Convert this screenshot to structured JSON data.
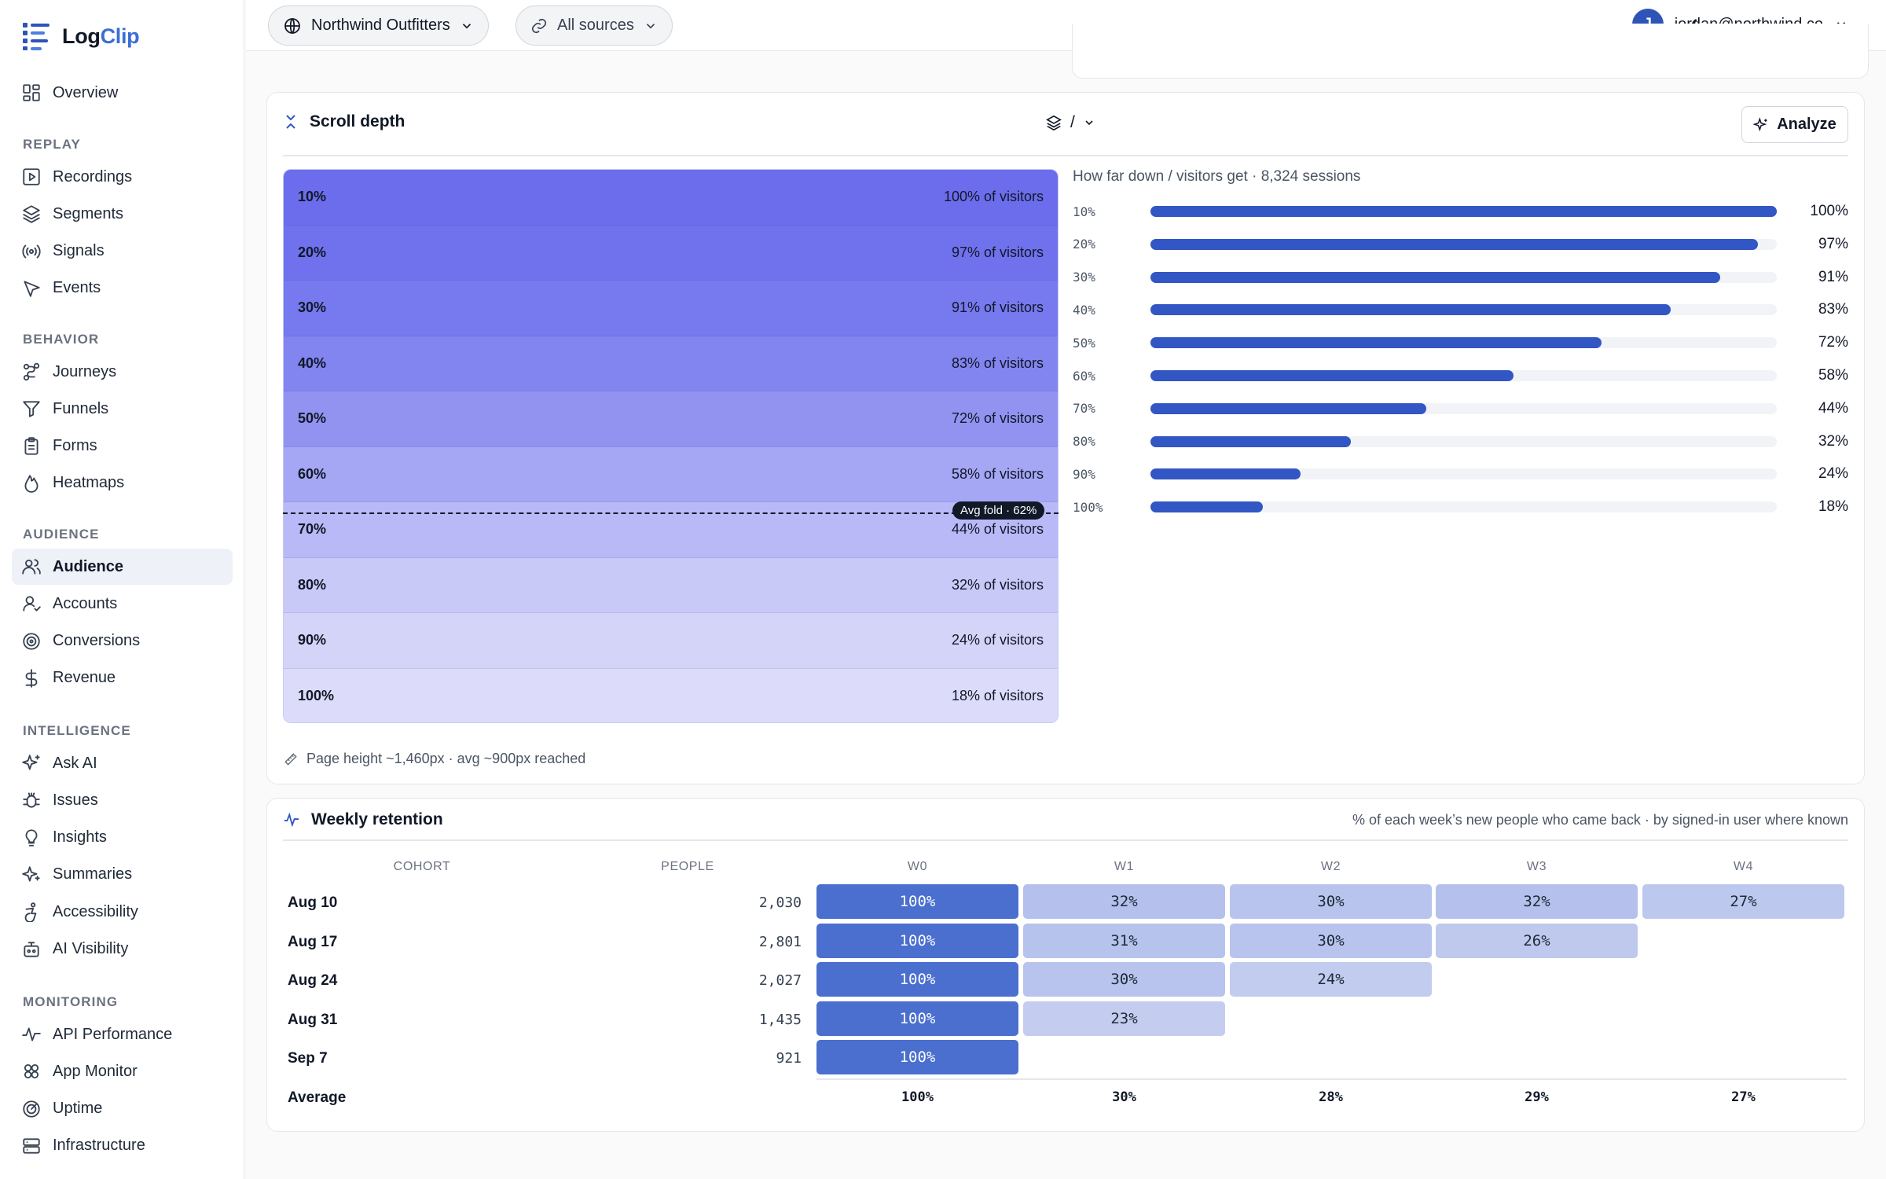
{
  "brand": {
    "prefix": "Log",
    "suffix": "Clip"
  },
  "nav": {
    "overview": "Overview",
    "sections": [
      {
        "title": "REPLAY",
        "items": [
          "Recordings",
          "Segments",
          "Signals",
          "Events"
        ]
      },
      {
        "title": "BEHAVIOR",
        "items": [
          "Journeys",
          "Funnels",
          "Forms",
          "Heatmaps"
        ]
      },
      {
        "title": "AUDIENCE",
        "items": [
          "Audience",
          "Accounts",
          "Conversions",
          "Revenue"
        ]
      },
      {
        "title": "INTELLIGENCE",
        "items": [
          "Ask AI",
          "Issues",
          "Insights",
          "Summaries",
          "Accessibility",
          "AI Visibility"
        ]
      },
      {
        "title": "MONITORING",
        "items": [
          "API Performance",
          "App Monitor",
          "Uptime",
          "Infrastructure"
        ]
      }
    ],
    "active": "Audience"
  },
  "topbar": {
    "workspace": "Northwind Outfitters",
    "sources": "All sources",
    "user_initial": "J",
    "user_email": "jordan@northwind.co"
  },
  "scroll": {
    "title": "Scroll depth",
    "page_selector": "/",
    "analyze_label": "Analyze",
    "subtitle": "How far down / visitors get · 8,324 sessions",
    "fold_label": "Avg fold · 62%",
    "fold_percent": 62,
    "footnote": "Page height ~1,460px · avg ~900px reached",
    "band_suffix": "of visitors",
    "depths": [
      {
        "label": "10%",
        "value": 100
      },
      {
        "label": "20%",
        "value": 97
      },
      {
        "label": "30%",
        "value": 91
      },
      {
        "label": "40%",
        "value": 83
      },
      {
        "label": "50%",
        "value": 72
      },
      {
        "label": "60%",
        "value": 58
      },
      {
        "label": "70%",
        "value": 44
      },
      {
        "label": "80%",
        "value": 32
      },
      {
        "label": "90%",
        "value": 24
      },
      {
        "label": "100%",
        "value": 18
      }
    ]
  },
  "retention": {
    "title": "Weekly retention",
    "note": "% of each week’s new people who came back · by signed-in user where known",
    "headers": {
      "cohort": "COHORT",
      "people": "PEOPLE",
      "weeks": [
        "W0",
        "W1",
        "W2",
        "W3",
        "W4"
      ]
    },
    "rows": [
      {
        "cohort": "Aug 10",
        "people": "2,030",
        "values": [
          100,
          32,
          30,
          32,
          27
        ]
      },
      {
        "cohort": "Aug 17",
        "people": "2,801",
        "values": [
          100,
          31,
          30,
          26
        ]
      },
      {
        "cohort": "Aug 24",
        "people": "2,027",
        "values": [
          100,
          30,
          24
        ]
      },
      {
        "cohort": "Aug 31",
        "people": "1,435",
        "values": [
          100,
          23
        ]
      },
      {
        "cohort": "Sep 7",
        "people": "921",
        "values": [
          100
        ]
      }
    ],
    "average_label": "Average",
    "averages": [
      "100%",
      "30%",
      "28%",
      "29%",
      "27%"
    ]
  },
  "colors": {
    "accent": "#3256c4",
    "band_top": "#6b6ded",
    "band_bottom": "#dcdcfa",
    "cell_strong": "#4a6fce",
    "cell_weak": "#c4cdef"
  }
}
